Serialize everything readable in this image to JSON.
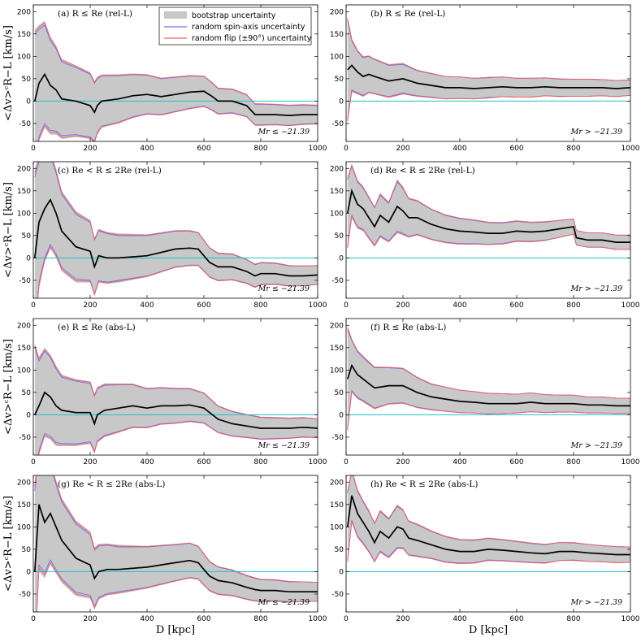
{
  "figure": {
    "ylabel": "<Δv>ᶜR−L [km/s]",
    "xlabel": "D [kpc]",
    "xlim": [
      0,
      1000
    ],
    "ylim": [
      -90,
      215
    ],
    "xticks": [
      0,
      200,
      400,
      600,
      800,
      1000
    ],
    "yticks": [
      -50,
      0,
      50,
      100,
      150,
      200
    ]
  },
  "legend": {
    "bootstrap": "bootstrap uncertainty",
    "spin": "random spin-axis uncertainty",
    "flip": "random flip (±90°) uncertainty"
  },
  "colors": {
    "mean": "#000000",
    "band": "#c8c8c8",
    "spin": "#6f6ff0",
    "flip": "#f06060",
    "zero": "#20c0c8"
  },
  "chart_data": [
    {
      "type": "line",
      "id": "a",
      "title": "(a) R ≤ Re (rel-L)",
      "magnitude": "Mr ≤ −21.39",
      "x": [
        5,
        20,
        40,
        60,
        80,
        100,
        150,
        200,
        215,
        225,
        240,
        300,
        350,
        400,
        450,
        500,
        550,
        600,
        630,
        650,
        700,
        750,
        780,
        800,
        850,
        900,
        950,
        1000
      ],
      "mean": [
        0,
        40,
        60,
        35,
        25,
        5,
        0,
        -10,
        -25,
        -10,
        0,
        5,
        12,
        15,
        10,
        15,
        20,
        22,
        10,
        0,
        0,
        -10,
        -30,
        -30,
        -30,
        -32,
        -30,
        -30
      ],
      "band_halfwidth": [
        160,
        130,
        120,
        110,
        100,
        90,
        80,
        75,
        70,
        65,
        60,
        55,
        50,
        45,
        42,
        40,
        38,
        35,
        32,
        30,
        28,
        26,
        25,
        25,
        24,
        24,
        23,
        22
      ],
      "spin_halfwidth": [
        150,
        120,
        110,
        100,
        92,
        82,
        75,
        70,
        65,
        60,
        56,
        52,
        47,
        43,
        40,
        38,
        36,
        33,
        30,
        28,
        26,
        24,
        23,
        23,
        22,
        22,
        21,
        20
      ],
      "flip_halfwidth": [
        155,
        125,
        115,
        105,
        95,
        86,
        78,
        72,
        67,
        62,
        57,
        53,
        48,
        44,
        41,
        39,
        37,
        34,
        31,
        29,
        27,
        25,
        24,
        24,
        23,
        23,
        22,
        21
      ]
    },
    {
      "type": "line",
      "id": "b",
      "title": "(b) R ≤ Re (rel-L)",
      "magnitude": "Mr > −21.39",
      "x": [
        5,
        20,
        40,
        60,
        80,
        100,
        150,
        200,
        250,
        300,
        350,
        400,
        450,
        500,
        550,
        600,
        650,
        700,
        750,
        800,
        850,
        900,
        950,
        1000
      ],
      "mean": [
        70,
        80,
        65,
        55,
        60,
        55,
        45,
        50,
        40,
        35,
        30,
        30,
        28,
        30,
        32,
        30,
        30,
        32,
        30,
        30,
        30,
        30,
        28,
        30
      ],
      "band_halfwidth": [
        120,
        60,
        50,
        45,
        42,
        40,
        38,
        35,
        30,
        28,
        26,
        25,
        24,
        24,
        23,
        22,
        22,
        21,
        20,
        20,
        20,
        19,
        19,
        18
      ],
      "spin_halfwidth": [
        110,
        55,
        46,
        42,
        40,
        38,
        35,
        32,
        28,
        26,
        25,
        24,
        23,
        22,
        22,
        21,
        21,
        20,
        19,
        19,
        19,
        18,
        18,
        17
      ],
      "flip_halfwidth": [
        115,
        58,
        48,
        44,
        41,
        39,
        36,
        34,
        29,
        27,
        25,
        24,
        23,
        23,
        22,
        21,
        21,
        20,
        20,
        19,
        19,
        18,
        18,
        17
      ]
    },
    {
      "type": "line",
      "id": "c",
      "title": "(c) Re < R ≤ 2Re (rel-L)",
      "magnitude": "Mr ≤ −21.39",
      "x": [
        5,
        20,
        40,
        60,
        80,
        100,
        150,
        200,
        215,
        230,
        260,
        300,
        400,
        500,
        550,
        580,
        600,
        620,
        650,
        700,
        750,
        780,
        800,
        850,
        900,
        950,
        1000
      ],
      "mean": [
        0,
        80,
        110,
        130,
        100,
        60,
        25,
        15,
        -20,
        5,
        0,
        0,
        5,
        20,
        22,
        20,
        5,
        -10,
        -20,
        -20,
        -30,
        -40,
        -35,
        -35,
        -40,
        -40,
        -38
      ],
      "band_halfwidth": [
        200,
        150,
        120,
        110,
        100,
        90,
        80,
        70,
        65,
        60,
        58,
        55,
        48,
        42,
        40,
        38,
        36,
        34,
        32,
        30,
        28,
        27,
        26,
        25,
        24,
        23,
        22
      ],
      "spin_halfwidth": [
        180,
        135,
        110,
        100,
        90,
        82,
        72,
        65,
        60,
        56,
        54,
        50,
        45,
        40,
        38,
        36,
        34,
        32,
        30,
        28,
        26,
        25,
        24,
        23,
        22,
        22,
        21
      ],
      "flip_halfwidth": [
        190,
        140,
        115,
        105,
        95,
        86,
        76,
        67,
        62,
        58,
        56,
        52,
        46,
        41,
        39,
        37,
        35,
        33,
        31,
        29,
        27,
        26,
        25,
        24,
        23,
        22,
        21
      ]
    },
    {
      "type": "line",
      "id": "d",
      "title": "(d) Re < R ≤ 2Re (rel-L)",
      "magnitude": "Mr > −21.39",
      "x": [
        5,
        20,
        40,
        60,
        80,
        100,
        120,
        150,
        180,
        200,
        220,
        250,
        300,
        350,
        400,
        450,
        500,
        550,
        600,
        650,
        700,
        750,
        800,
        810,
        850,
        900,
        950,
        1000
      ],
      "mean": [
        100,
        150,
        120,
        110,
        90,
        70,
        95,
        80,
        115,
        105,
        90,
        90,
        75,
        65,
        60,
        58,
        55,
        55,
        60,
        58,
        60,
        65,
        70,
        45,
        40,
        40,
        35,
        35
      ],
      "band_halfwidth": [
        80,
        60,
        55,
        50,
        48,
        45,
        50,
        45,
        60,
        55,
        45,
        40,
        35,
        32,
        30,
        28,
        26,
        25,
        24,
        23,
        22,
        20,
        18,
        17,
        17,
        17,
        17,
        17
      ],
      "spin_halfwidth": [
        75,
        55,
        50,
        46,
        44,
        42,
        45,
        42,
        55,
        50,
        42,
        37,
        33,
        30,
        28,
        26,
        24,
        23,
        22,
        21,
        20,
        19,
        17,
        16,
        16,
        16,
        16,
        16
      ],
      "flip_halfwidth": [
        78,
        58,
        52,
        48,
        46,
        43,
        48,
        44,
        58,
        52,
        43,
        38,
        34,
        31,
        29,
        27,
        25,
        24,
        23,
        22,
        21,
        19,
        17,
        16,
        16,
        16,
        16,
        16
      ]
    },
    {
      "type": "line",
      "id": "e",
      "title": "(e) R ≤ Re (abs-L)",
      "magnitude": "Mr ≤ −21.39",
      "x": [
        5,
        20,
        40,
        60,
        80,
        100,
        150,
        200,
        215,
        225,
        250,
        300,
        350,
        400,
        450,
        500,
        550,
        600,
        650,
        700,
        750,
        800,
        850,
        900,
        950,
        1000
      ],
      "mean": [
        0,
        20,
        50,
        40,
        20,
        10,
        5,
        5,
        -20,
        0,
        10,
        15,
        20,
        15,
        20,
        20,
        22,
        15,
        -10,
        -20,
        -25,
        -30,
        -30,
        -30,
        -28,
        -30
      ],
      "band_halfwidth": [
        160,
        110,
        100,
        95,
        90,
        80,
        75,
        70,
        66,
        62,
        60,
        55,
        50,
        45,
        42,
        40,
        38,
        35,
        30,
        28,
        26,
        25,
        24,
        23,
        22,
        22
      ],
      "spin_halfwidth": [
        150,
        100,
        92,
        88,
        82,
        74,
        70,
        65,
        62,
        58,
        56,
        52,
        47,
        43,
        40,
        38,
        36,
        33,
        29,
        27,
        25,
        24,
        23,
        22,
        21,
        21
      ],
      "flip_halfwidth": [
        155,
        105,
        96,
        92,
        86,
        77,
        72,
        68,
        64,
        60,
        58,
        53,
        48,
        44,
        41,
        39,
        37,
        34,
        30,
        28,
        26,
        25,
        24,
        23,
        22,
        21
      ]
    },
    {
      "type": "line",
      "id": "f",
      "title": "(f) R ≤ Re (abs-L)",
      "magnitude": "Mr > −21.39",
      "x": [
        5,
        20,
        40,
        60,
        80,
        100,
        150,
        200,
        250,
        300,
        350,
        400,
        450,
        500,
        550,
        600,
        650,
        700,
        750,
        800,
        850,
        900,
        950,
        1000
      ],
      "mean": [
        80,
        110,
        90,
        80,
        70,
        60,
        65,
        65,
        50,
        40,
        35,
        30,
        28,
        25,
        25,
        25,
        28,
        25,
        25,
        25,
        22,
        22,
        20,
        20
      ],
      "band_halfwidth": [
        120,
        60,
        55,
        52,
        50,
        48,
        42,
        40,
        35,
        30,
        28,
        26,
        25,
        24,
        23,
        22,
        22,
        21,
        20,
        20,
        19,
        19,
        18,
        18
      ],
      "spin_halfwidth": [
        110,
        56,
        51,
        48,
        46,
        45,
        40,
        38,
        33,
        28,
        27,
        25,
        24,
        23,
        22,
        21,
        21,
        20,
        19,
        19,
        18,
        18,
        17,
        17
      ],
      "flip_halfwidth": [
        115,
        58,
        53,
        50,
        48,
        46,
        41,
        39,
        34,
        29,
        27,
        25,
        24,
        23,
        22,
        21,
        21,
        20,
        19,
        19,
        18,
        18,
        17,
        17
      ]
    },
    {
      "type": "line",
      "id": "g",
      "title": "(g) Re < R ≤ 2Re (abs-L)",
      "magnitude": "Mr ≤ −21.39",
      "x": [
        5,
        20,
        40,
        60,
        80,
        100,
        150,
        200,
        215,
        230,
        260,
        300,
        400,
        500,
        550,
        580,
        600,
        620,
        650,
        700,
        750,
        780,
        800,
        850,
        900,
        950,
        1000
      ],
      "mean": [
        0,
        150,
        110,
        130,
        100,
        70,
        30,
        15,
        -15,
        0,
        5,
        5,
        10,
        20,
        25,
        20,
        5,
        -10,
        -20,
        -25,
        -35,
        -40,
        -42,
        -42,
        -45,
        -45,
        -45
      ],
      "band_halfwidth": [
        200,
        150,
        125,
        115,
        105,
        95,
        85,
        75,
        70,
        62,
        58,
        55,
        48,
        42,
        40,
        38,
        36,
        34,
        32,
        30,
        28,
        27,
        26,
        25,
        24,
        23,
        22
      ],
      "spin_halfwidth": [
        180,
        135,
        112,
        104,
        95,
        86,
        76,
        68,
        63,
        57,
        54,
        50,
        45,
        40,
        38,
        36,
        34,
        32,
        30,
        28,
        26,
        25,
        24,
        23,
        22,
        22,
        21
      ],
      "flip_halfwidth": [
        190,
        142,
        118,
        110,
        100,
        90,
        80,
        72,
        66,
        60,
        56,
        52,
        46,
        41,
        39,
        37,
        35,
        33,
        31,
        29,
        27,
        26,
        25,
        24,
        23,
        22,
        21
      ]
    },
    {
      "type": "line",
      "id": "h",
      "title": "(h) Re < R ≤ 2Re (abs-L)",
      "magnitude": "Mr > −21.39",
      "x": [
        5,
        20,
        40,
        60,
        80,
        100,
        120,
        150,
        180,
        200,
        220,
        250,
        300,
        350,
        400,
        450,
        500,
        550,
        600,
        650,
        700,
        750,
        800,
        850,
        900,
        950,
        1000
      ],
      "mean": [
        100,
        170,
        130,
        110,
        90,
        65,
        90,
        75,
        100,
        95,
        75,
        70,
        60,
        50,
        45,
        45,
        50,
        48,
        45,
        42,
        40,
        45,
        45,
        42,
        40,
        38,
        38
      ],
      "band_halfwidth": [
        80,
        60,
        55,
        50,
        48,
        45,
        48,
        45,
        50,
        45,
        40,
        38,
        32,
        30,
        28,
        27,
        26,
        25,
        24,
        23,
        22,
        21,
        20,
        20,
        19,
        19,
        18
      ],
      "spin_halfwidth": [
        75,
        55,
        50,
        46,
        44,
        42,
        44,
        42,
        46,
        42,
        37,
        35,
        30,
        28,
        26,
        25,
        24,
        23,
        22,
        21,
        20,
        20,
        19,
        19,
        18,
        18,
        17
      ],
      "flip_halfwidth": [
        78,
        58,
        52,
        48,
        46,
        43,
        46,
        44,
        48,
        43,
        38,
        36,
        31,
        29,
        27,
        26,
        25,
        24,
        23,
        22,
        21,
        20,
        20,
        19,
        18,
        18,
        17
      ]
    }
  ]
}
